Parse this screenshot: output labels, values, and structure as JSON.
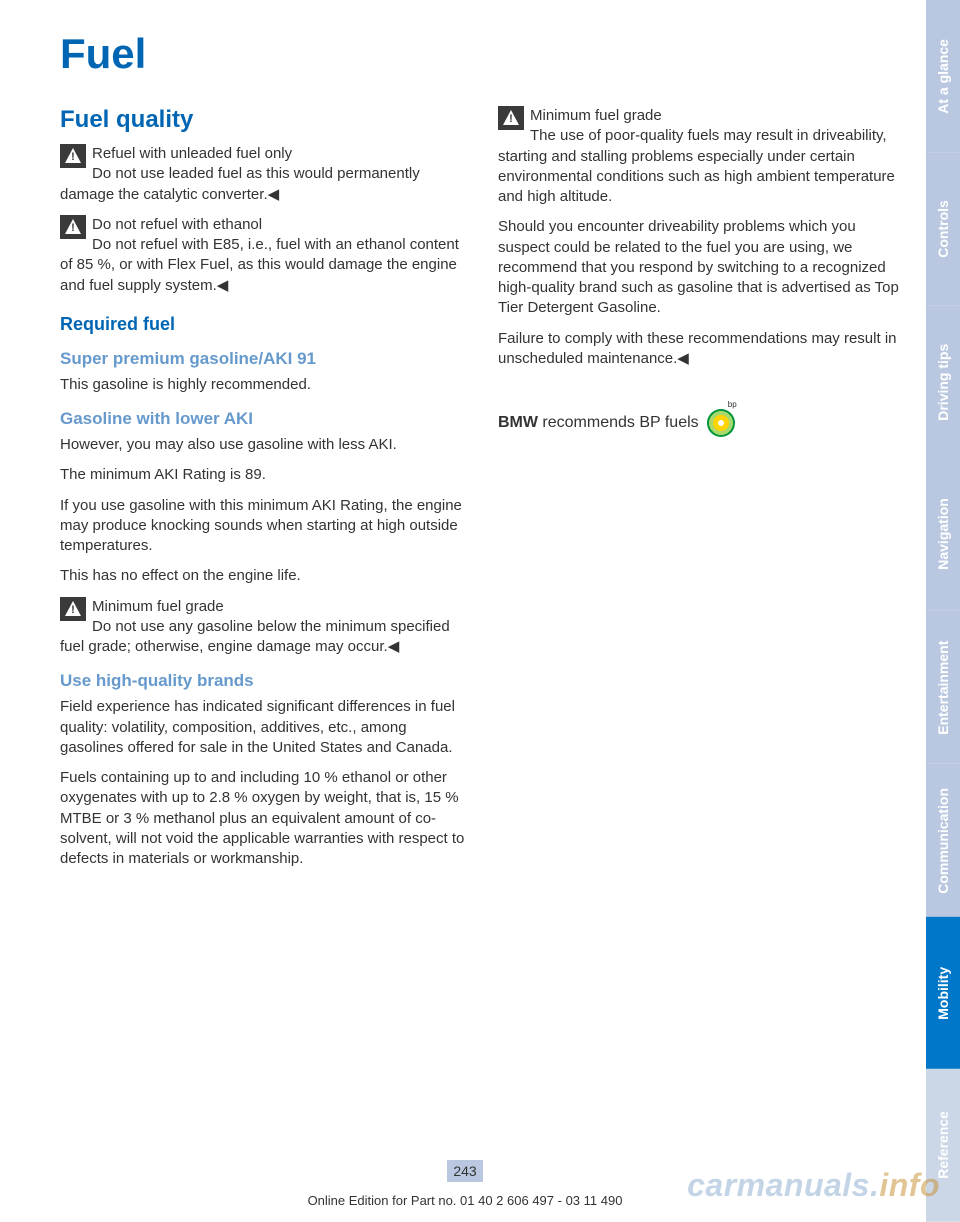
{
  "page": {
    "title": "Fuel",
    "number": "243",
    "footer": "Online Edition for Part no. 01 40 2 606 497 - 03 11 490",
    "watermark_main": "carmanuals.",
    "watermark_suffix": "info"
  },
  "colors": {
    "heading_blue": "#0066b3",
    "sub_blue": "#6699cc",
    "body_text": "#333333",
    "page_num_bg": "#b9c8e0",
    "tab_inactive": "#b9c8e0",
    "tab_active": "#0077c8",
    "tab_dimmed": "#cbd6e6"
  },
  "left": {
    "section_title": "Fuel quality",
    "warn1_title": "Refuel with unleaded fuel only",
    "warn1_body": "Do not use leaded fuel as this would permanently damage the catalytic converter.◀",
    "warn2_title": "Do not refuel with ethanol",
    "warn2_body": "Do not refuel with E85, i.e., fuel with an ethanol content of 85 %, or with Flex Fuel, as this would damage the engine and fuel supply system.◀",
    "h2_required": "Required fuel",
    "h3_super": "Super premium gasoline/AKI 91",
    "p_super": "This gasoline is highly recommended.",
    "h3_lower": "Gasoline with lower AKI",
    "p_lower1": "However, you may also use gasoline with less AKI.",
    "p_lower2": "The minimum AKI Rating is 89.",
    "p_lower3": "If you use gasoline with this minimum AKI Rating, the engine may produce knocking sounds when starting at high outside temperatures.",
    "p_lower4": "This has no effect on the engine life.",
    "warn3_title": "Minimum fuel grade",
    "warn3_body": "Do not use any gasoline below the minimum specified fuel grade; otherwise, engine damage may occur.◀",
    "h3_brands": "Use high-quality brands",
    "p_brands1": "Field experience has indicated significant differences in fuel quality: volatility, composition, additives, etc., among gasolines offered for sale in the United States and Canada.",
    "p_brands2": "Fuels containing up to and including 10 % ethanol or other oxygenates with up to 2.8 % oxygen by weight, that is, 15 % MTBE or 3 % methanol plus an equivalent amount of co-solvent, will not void the applicable warranties with respect to defects in materials or workmanship."
  },
  "right": {
    "warn4_title": "Minimum fuel grade",
    "warn4_body": "The use of poor-quality fuels may result in driveability, starting and stalling problems especially under certain environmental conditions such as high ambient temperature and high altitude.",
    "p_r1": "Should you encounter driveability problems which you suspect could be related to the fuel you are using, we recommend that you respond by switching to a recognized high-quality brand such as gasoline that is advertised as Top Tier Detergent Gasoline.",
    "p_r2": "Failure to comply with these recommendations may result in unscheduled maintenance.◀",
    "bp_strong": "BMW",
    "bp_rest": " recommends BP fuels"
  },
  "tabs": [
    {
      "label": "At a glance",
      "bg": "#b9c8e0",
      "active": false
    },
    {
      "label": "Controls",
      "bg": "#b9c8e0",
      "active": false
    },
    {
      "label": "Driving tips",
      "bg": "#b9c8e0",
      "active": false
    },
    {
      "label": "Navigation",
      "bg": "#b9c8e0",
      "active": false
    },
    {
      "label": "Entertainment",
      "bg": "#b9c8e0",
      "active": false
    },
    {
      "label": "Communication",
      "bg": "#b9c8e0",
      "active": false
    },
    {
      "label": "Mobility",
      "bg": "#0077c8",
      "active": true
    },
    {
      "label": "Reference",
      "bg": "#cbd6e6",
      "active": false
    }
  ]
}
